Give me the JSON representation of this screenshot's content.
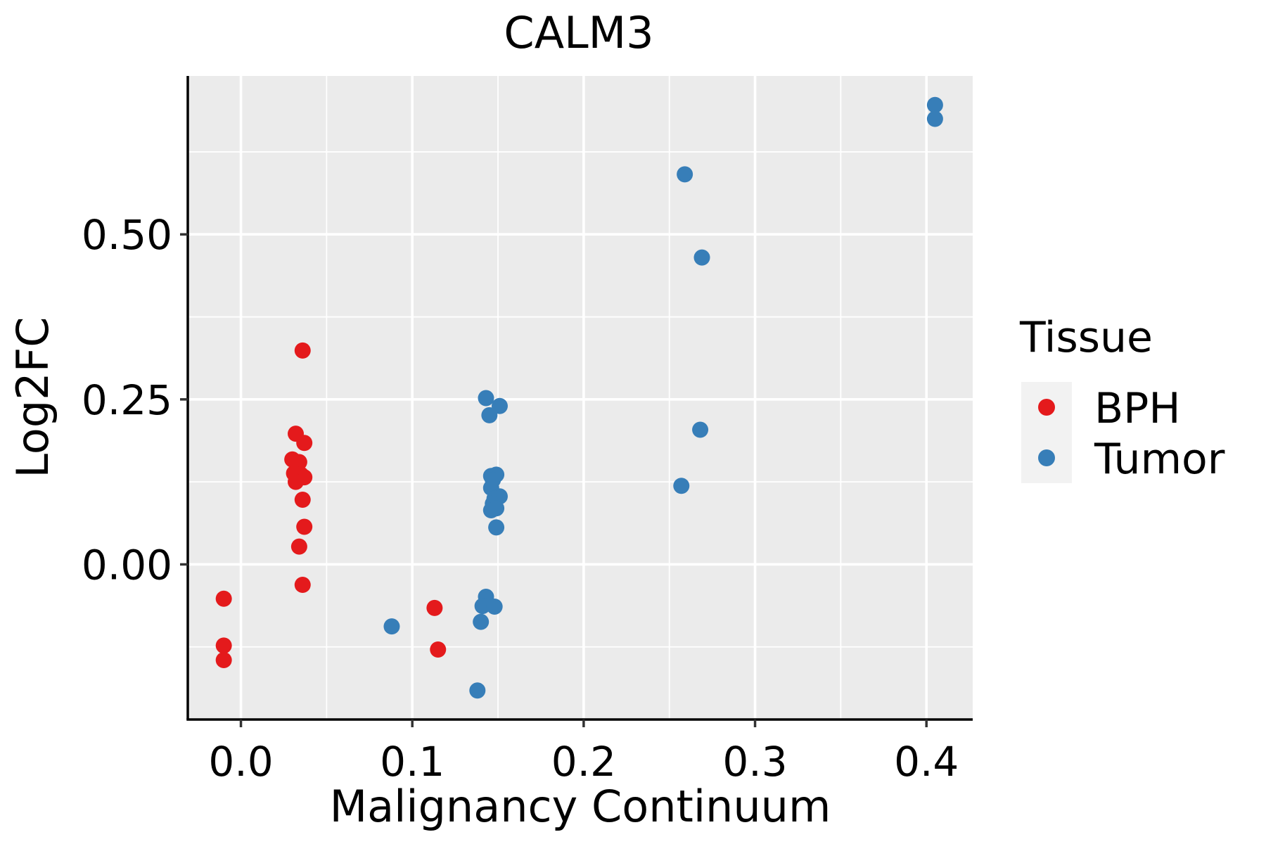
{
  "chart_data": {
    "type": "scatter",
    "title": "CALM3",
    "xlabel": "Malignancy Continuum",
    "ylabel": "Log2FC",
    "xlim": [
      -0.031,
      0.427
    ],
    "ylim": [
      -0.235,
      0.74
    ],
    "xticks": [
      0.0,
      0.1,
      0.2,
      0.3,
      0.4
    ],
    "xtick_labels": [
      "0.0",
      "0.1",
      "0.2",
      "0.3",
      "0.4"
    ],
    "yticks": [
      0.0,
      0.25,
      0.5
    ],
    "ytick_labels": [
      "0.00",
      "0.25",
      "0.50"
    ],
    "x_minor": [
      0.05,
      0.15,
      0.25,
      0.35
    ],
    "y_minor": [
      -0.125,
      0.125,
      0.375,
      0.625
    ],
    "grid": true,
    "panel_background": "#EBEBEB",
    "legend": {
      "title": "Tissue",
      "position": "right",
      "entries": [
        {
          "name": "BPH",
          "color": "#E41A1C"
        },
        {
          "name": "Tumor",
          "color": "#377EB8"
        }
      ]
    },
    "series": [
      {
        "name": "BPH",
        "color": "#E41A1C",
        "points": [
          {
            "x": -0.01,
            "y": -0.052
          },
          {
            "x": -0.01,
            "y": -0.123
          },
          {
            "x": -0.01,
            "y": -0.145
          },
          {
            "x": 0.036,
            "y": 0.324
          },
          {
            "x": 0.032,
            "y": 0.198
          },
          {
            "x": 0.037,
            "y": 0.184
          },
          {
            "x": 0.03,
            "y": 0.159
          },
          {
            "x": 0.034,
            "y": 0.155
          },
          {
            "x": 0.031,
            "y": 0.138
          },
          {
            "x": 0.035,
            "y": 0.136
          },
          {
            "x": 0.037,
            "y": 0.132
          },
          {
            "x": 0.032,
            "y": 0.125
          },
          {
            "x": 0.036,
            "y": 0.098
          },
          {
            "x": 0.037,
            "y": 0.057
          },
          {
            "x": 0.034,
            "y": 0.027
          },
          {
            "x": 0.036,
            "y": -0.031
          },
          {
            "x": 0.113,
            "y": -0.066
          },
          {
            "x": 0.115,
            "y": -0.129
          }
        ]
      },
      {
        "name": "Tumor",
        "color": "#377EB8",
        "points": [
          {
            "x": 0.405,
            "y": 0.696
          },
          {
            "x": 0.405,
            "y": 0.675
          },
          {
            "x": 0.259,
            "y": 0.591
          },
          {
            "x": 0.269,
            "y": 0.465
          },
          {
            "x": 0.268,
            "y": 0.204
          },
          {
            "x": 0.257,
            "y": 0.119
          },
          {
            "x": 0.143,
            "y": 0.252
          },
          {
            "x": 0.151,
            "y": 0.24
          },
          {
            "x": 0.145,
            "y": 0.226
          },
          {
            "x": 0.146,
            "y": 0.134
          },
          {
            "x": 0.149,
            "y": 0.136
          },
          {
            "x": 0.147,
            "y": 0.128
          },
          {
            "x": 0.146,
            "y": 0.116
          },
          {
            "x": 0.151,
            "y": 0.103
          },
          {
            "x": 0.148,
            "y": 0.1
          },
          {
            "x": 0.147,
            "y": 0.092
          },
          {
            "x": 0.146,
            "y": 0.082
          },
          {
            "x": 0.149,
            "y": 0.085
          },
          {
            "x": 0.149,
            "y": 0.056
          },
          {
            "x": 0.143,
            "y": -0.049
          },
          {
            "x": 0.141,
            "y": -0.063
          },
          {
            "x": 0.148,
            "y": -0.064
          },
          {
            "x": 0.14,
            "y": -0.087
          },
          {
            "x": 0.088,
            "y": -0.094
          },
          {
            "x": 0.138,
            "y": -0.191
          }
        ]
      }
    ]
  }
}
